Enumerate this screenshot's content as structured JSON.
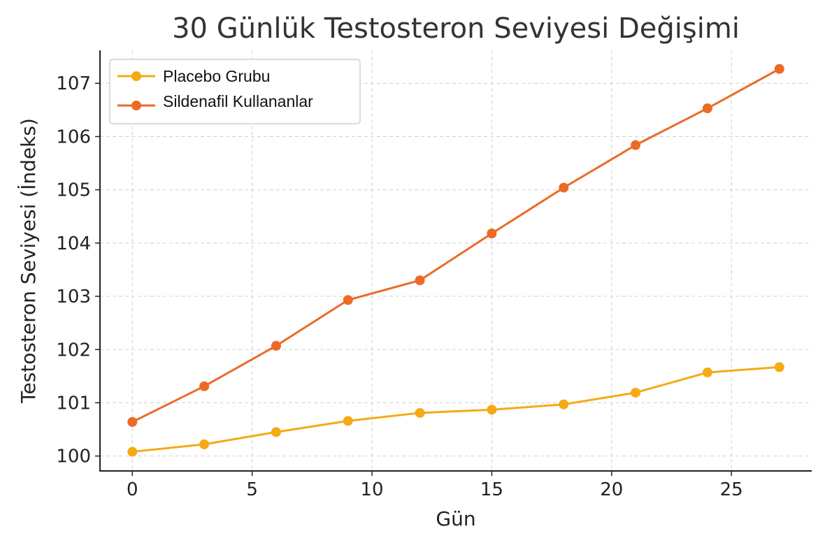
{
  "chart_data": {
    "type": "line",
    "title": "30 Günlük Testosteron Seviyesi Değişimi",
    "xlabel": "Gün",
    "ylabel": "Testosteron Seviyesi (İndeks)",
    "x": [
      0,
      3,
      6,
      9,
      12,
      15,
      18,
      21,
      24,
      27
    ],
    "xlim": [
      -1.35,
      28.35
    ],
    "ylim": [
      99.72,
      107.62
    ],
    "xticks": [
      0,
      5,
      10,
      15,
      20,
      25
    ],
    "yticks": [
      100,
      101,
      102,
      103,
      104,
      105,
      106,
      107
    ],
    "grid": true,
    "legend_position": "top-left",
    "series": [
      {
        "name": "Placebo Grubu",
        "color": "#F5AA14",
        "values": [
          100.08,
          100.22,
          100.45,
          100.66,
          100.81,
          100.87,
          100.97,
          101.19,
          101.57,
          101.67
        ]
      },
      {
        "name": "Sildenafil Kullananlar",
        "color": "#EC6A28",
        "values": [
          100.64,
          101.31,
          102.07,
          102.93,
          103.3,
          104.18,
          105.04,
          105.84,
          106.53,
          107.27
        ]
      }
    ]
  }
}
